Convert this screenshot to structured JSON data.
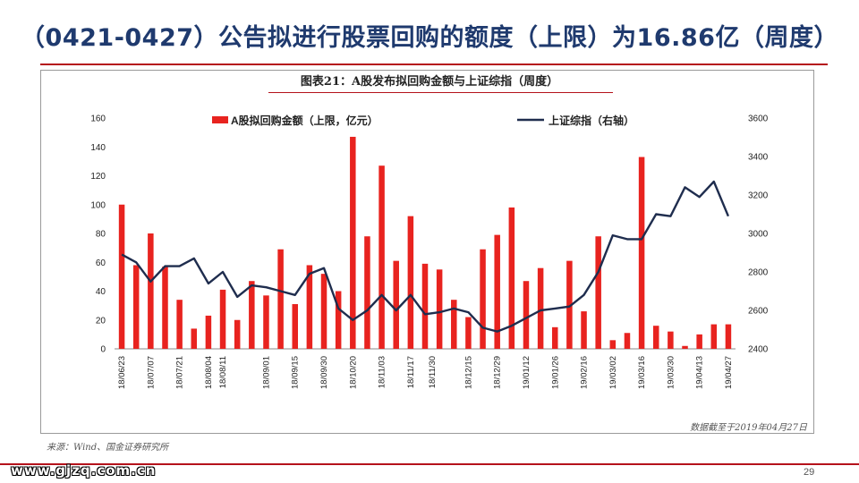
{
  "slide": {
    "title": "（0421-0427）公告拟进行股票回购的额度（上限）为16.86亿（周度）",
    "chart_caption": "图表21：A股发布拟回购金额与上证综指（周度）",
    "cutoff_note": "数据截至于2019年04月27日",
    "source_note": "来源：Wind、国金证券研究所",
    "watermark": "www.gjzq.com.cn",
    "page_number": "29"
  },
  "colors": {
    "title": "#1F3A6E",
    "rule": "#B5121B",
    "bar": "#E8231F",
    "line": "#1F2D4E"
  },
  "chart_data": {
    "type": "bar",
    "categories": [
      "18/06/23",
      "18/06/30",
      "18/07/07",
      "18/07/14",
      "18/07/21",
      "18/07/28",
      "18/08/04",
      "18/08/11",
      "18/08/18",
      "18/08/25",
      "18/09/01",
      "18/09/08",
      "18/09/15",
      "18/09/22",
      "18/09/30",
      "18/10/13",
      "18/10/20",
      "18/10/27",
      "18/11/03",
      "18/11/10",
      "18/11/17",
      "18/11/24",
      "18/12/01",
      "18/12/08",
      "18/12/15",
      "18/12/22",
      "18/12/29",
      "19/01/05",
      "19/01/12",
      "19/01/19",
      "19/01/26",
      "19/02/02",
      "19/02/16",
      "19/02/23",
      "19/03/02",
      "19/03/09",
      "19/03/16",
      "19/03/23",
      "19/03/30",
      "19/04/06",
      "19/04/13",
      "19/04/20",
      "19/04/27"
    ],
    "tick_labels_shown": [
      "18/06/23",
      "18/07/07",
      "18/07/21",
      "18/08/04",
      "18/08/11",
      "18/09/01",
      "18/09/15",
      "18/09/30",
      "18/10/20",
      "18/11/03",
      "18/11/17",
      "18/11/30",
      "18/12/15",
      "18/12/29",
      "19/01/12",
      "19/01/26",
      "19/02/16",
      "19/03/02",
      "19/03/16",
      "19/03/30",
      "19/04/13",
      "19/04/27"
    ],
    "series": [
      {
        "name": "A股拟回购金额（上限，亿元）",
        "type": "bar",
        "axis": "left",
        "values": [
          100,
          58,
          80,
          57,
          34,
          14,
          23,
          41,
          20,
          47,
          37,
          69,
          31,
          58,
          52,
          40,
          147,
          78,
          127,
          61,
          92,
          59,
          55,
          34,
          22,
          69,
          79,
          98,
          47,
          56,
          15,
          61,
          26,
          78,
          6,
          11,
          133,
          16,
          12,
          2,
          10,
          17,
          17
        ]
      },
      {
        "name": "上证综指（右轴）",
        "type": "line",
        "axis": "right",
        "values": [
          2890,
          2850,
          2750,
          2830,
          2830,
          2870,
          2740,
          2800,
          2670,
          2730,
          2720,
          2700,
          2680,
          2790,
          2820,
          2610,
          2550,
          2600,
          2680,
          2600,
          2680,
          2580,
          2590,
          2610,
          2590,
          2510,
          2490,
          2520,
          2560,
          2600,
          2610,
          2620,
          2680,
          2800,
          2990,
          2970,
          2970,
          3100,
          3090,
          3240,
          3190,
          3270,
          3090
        ]
      }
    ],
    "y_left": {
      "min": 0,
      "max": 160,
      "ticks": [
        0,
        20,
        40,
        60,
        80,
        100,
        120,
        140,
        160
      ]
    },
    "y_right": {
      "min": 2400,
      "max": 3600,
      "ticks": [
        2400,
        2600,
        2800,
        3000,
        3200,
        3400,
        3600
      ]
    },
    "legend_position": "top",
    "grid": false
  }
}
